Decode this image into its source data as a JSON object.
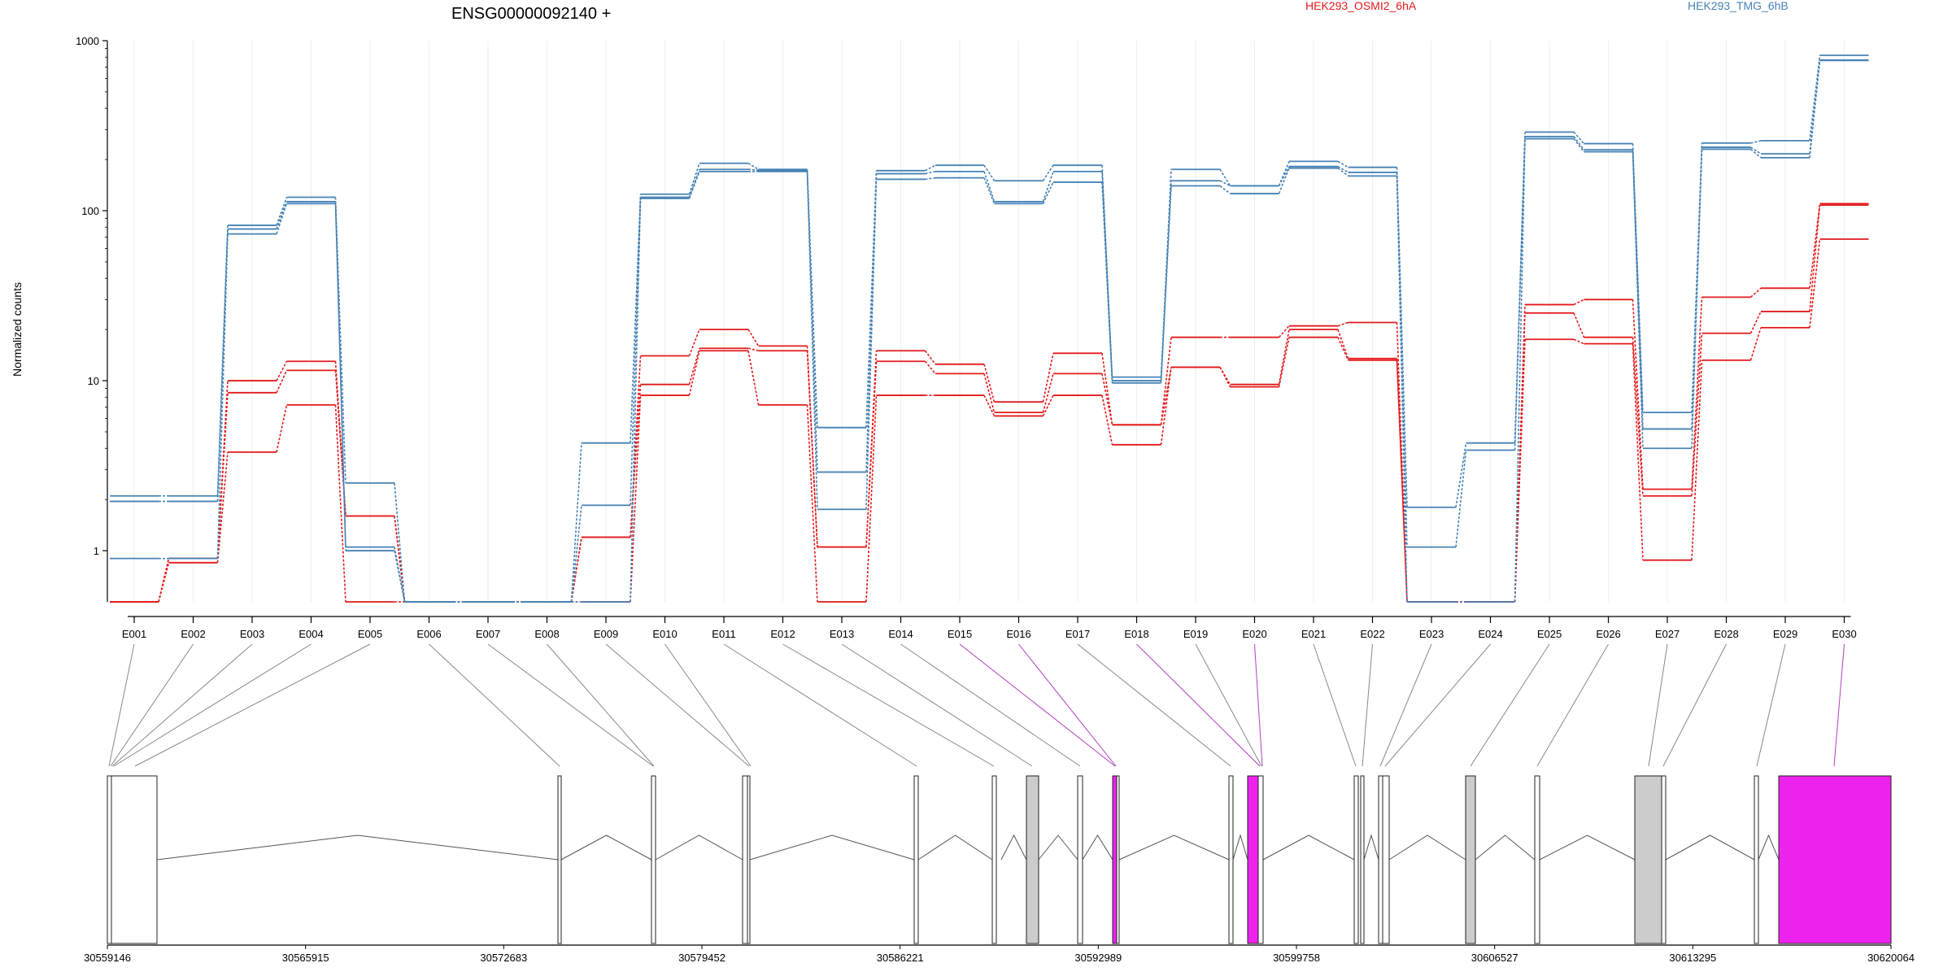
{
  "chart_data": {
    "type": "line",
    "title": "ENSG00000092140 +",
    "ylabel": "Normalized counts",
    "yscale": "log",
    "ylim": [
      0.5,
      1000
    ],
    "yticks": [
      1,
      10,
      100,
      1000
    ],
    "ytick_labels": [
      "1",
      "10",
      "100",
      "1000"
    ],
    "grid": "vertical",
    "legend_placement": "top",
    "exons": [
      "E001",
      "E002",
      "E003",
      "E004",
      "E005",
      "E006",
      "E007",
      "E008",
      "E009",
      "E010",
      "E011",
      "E012",
      "E013",
      "E014",
      "E015",
      "E016",
      "E017",
      "E018",
      "E019",
      "E020",
      "E021",
      "E022",
      "E023",
      "E024",
      "E025",
      "E026",
      "E027",
      "E028",
      "E029",
      "E030"
    ],
    "series": [
      {
        "name": "HEK293_OSMI2_6hA",
        "color": "#e31a1c",
        "values": [
          0.5,
          0.9,
          10,
          13,
          1.6,
          0.5,
          0.5,
          0.5,
          1.2,
          14,
          20,
          16,
          1.05,
          15,
          12.5,
          7.5,
          14.5,
          5.5,
          18,
          18,
          21,
          22,
          0.5,
          0.5,
          28,
          30,
          2.3,
          31,
          35,
          110
        ]
      },
      {
        "name": "HEK293_OSMI2_6hA",
        "color": "#e31a1c",
        "values": [
          0.5,
          0.9,
          8.5,
          11.5,
          1.6,
          0.5,
          0.5,
          0.5,
          1.2,
          9.5,
          15.5,
          15,
          1.05,
          13,
          11,
          6.5,
          11,
          5.5,
          12,
          9.5,
          20,
          13.5,
          0.5,
          0.5,
          25,
          18,
          2.1,
          19,
          25.5,
          108
        ]
      },
      {
        "name": "HEK293_OSMI2_6hA",
        "color": "#e31a1c",
        "values": [
          0.5,
          0.85,
          3.8,
          7.2,
          0.5,
          0.5,
          0.5,
          0.5,
          0.5,
          8.2,
          15,
          7.2,
          0.5,
          8.2,
          8.2,
          6.2,
          8.2,
          4.2,
          12,
          9.2,
          18,
          13.2,
          0.5,
          0.5,
          17.5,
          16.5,
          0.88,
          13.2,
          20.5,
          68
        ]
      },
      {
        "name": "HEK293_TMG_6hB",
        "color": "#4682b4",
        "values": [
          2.1,
          2.1,
          82,
          120,
          2.5,
          0.5,
          0.5,
          0.5,
          4.3,
          125,
          190,
          175,
          5.3,
          172,
          185,
          150,
          185,
          10.5,
          175,
          140,
          195,
          180,
          1.8,
          4.3,
          290,
          248,
          6.5,
          250,
          258,
          820
        ]
      },
      {
        "name": "HEK293_TMG_6hB",
        "color": "#4682b4",
        "values": [
          1.95,
          1.95,
          78,
          113,
          1.05,
          0.5,
          0.5,
          0.5,
          1.85,
          120,
          175,
          173,
          2.9,
          165,
          170,
          113,
          170,
          10,
          150,
          140,
          182,
          168,
          1.05,
          3.9,
          273,
          228,
          5.2,
          236,
          216,
          770
        ]
      },
      {
        "name": "HEK293_TMG_6hB",
        "color": "#4682b4",
        "values": [
          0.9,
          0.9,
          73,
          110,
          1,
          0.5,
          0.5,
          0.5,
          0.5,
          118,
          170,
          170,
          1.75,
          153,
          156,
          110,
          147,
          9.7,
          140,
          126,
          178,
          160,
          0.5,
          0.5,
          265,
          222,
          4,
          230,
          205,
          765
        ]
      }
    ],
    "legend": [
      {
        "label": "HEK293_OSMI2_6hA",
        "color": "#e31a1c"
      },
      {
        "label": "HEK293_TMG_6hB",
        "color": "#4682b4"
      }
    ],
    "gene_model": {
      "coordinate_labels": [
        "30559146",
        "30565915",
        "30572683",
        "30579452",
        "30586221",
        "30592989",
        "30599758",
        "30606527",
        "30613295",
        "30620064"
      ],
      "highlight_color": "#ee22ee",
      "exon_fill": "#cccccc"
    }
  }
}
